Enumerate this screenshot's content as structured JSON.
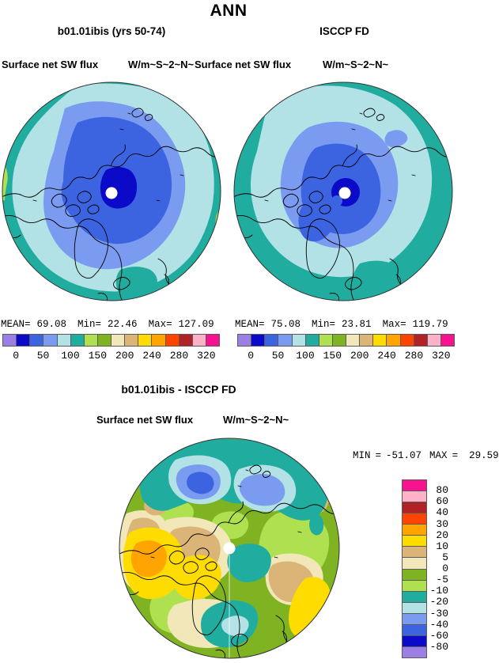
{
  "header": {
    "title": "ANN"
  },
  "model": {
    "subtitle": "b01.01ibis (yrs 50-74)",
    "field_label": "Surface net SW flux",
    "units_label": "W/m~S~2~N~",
    "stats": {
      "mean_label": "MEAN=",
      "mean": "69.08",
      "min_label": "Min=",
      "min": "22.46",
      "max_label": "Max=",
      "max": "127.09"
    }
  },
  "obs": {
    "subtitle": "ISCCP FD",
    "field_label": "Surface net SW flux",
    "units_label": "W/m~S~2~N~",
    "stats": {
      "mean_label": "MEAN=",
      "mean": "75.08",
      "min_label": "Min=",
      "min": "23.81",
      "max_label": "Max=",
      "max": "119.79"
    }
  },
  "diff": {
    "subtitle": "b01.01ibis - ISCCP FD",
    "field_label": "Surface net SW flux",
    "units_label": "W/m~S~2~N~",
    "stats": {
      "min_label": "MIN",
      "eq1": "=",
      "min": "-51.07",
      "max_label": "MAX",
      "eq2": "=",
      "max": "29.59"
    }
  },
  "chart_data": {
    "type": "heatmap",
    "subtype": "north-polar-stereographic filled contour maps",
    "season": "ANN",
    "variable": "Surface net SW flux",
    "units_raw": "W/m~S~2~N~",
    "panels": [
      {
        "name": "b01.01ibis (yrs 50-74)",
        "mean": 69.08,
        "min": 22.46,
        "max": 127.09
      },
      {
        "name": "ISCCP FD",
        "mean": 75.08,
        "min": 23.81,
        "max": 119.79
      },
      {
        "name": "b01.01ibis - ISCCP FD",
        "min": -51.07,
        "max": 29.59
      }
    ],
    "flux_colorbar": {
      "tick_labels": [
        "0",
        "50",
        "100",
        "150",
        "200",
        "240",
        "280",
        "320"
      ],
      "colors": [
        "#9c7fe5",
        "#0a0ac8",
        "#3c64e1",
        "#7a9bef",
        "#b2e1e6",
        "#20ada0",
        "#aee04f",
        "#80b322",
        "#f1e7b9",
        "#dbb577",
        "#ffdc00",
        "#ffa400",
        "#ff4400",
        "#b02226",
        "#ffb1c8",
        "#f7138f"
      ]
    },
    "diff_colorbar": {
      "tick_labels_top_to_bottom": [
        "80",
        "60",
        "40",
        "30",
        "20",
        "10",
        "5",
        "0",
        "-5",
        "-10",
        "-20",
        "-30",
        "-40",
        "-60",
        "-80"
      ],
      "colors_top_to_bottom": [
        "#f7138f",
        "#ffb1c8",
        "#b02226",
        "#ff4400",
        "#ffa400",
        "#ffdc00",
        "#dbb577",
        "#f1e7b9",
        "#80b322",
        "#aee04f",
        "#20ada0",
        "#b2e1e6",
        "#7a9bef",
        "#3c64e1",
        "#0a0ac8",
        "#9c7fe5"
      ]
    },
    "legend_position": "horizontal below top maps; vertical right of difference map",
    "map_colors": {
      "teal": "#20ada0",
      "pale_blue": "#b2e1e6",
      "cornflower": "#7a9bef",
      "royal_blue": "#3c64e1",
      "navy": "#0a0ac8",
      "olive_green": "#80b322",
      "light_green": "#aee04f",
      "cream": "#f1e7b9",
      "tan": "#dbb577",
      "yellow": "#ffdc00",
      "orange": "#ffa400"
    }
  }
}
